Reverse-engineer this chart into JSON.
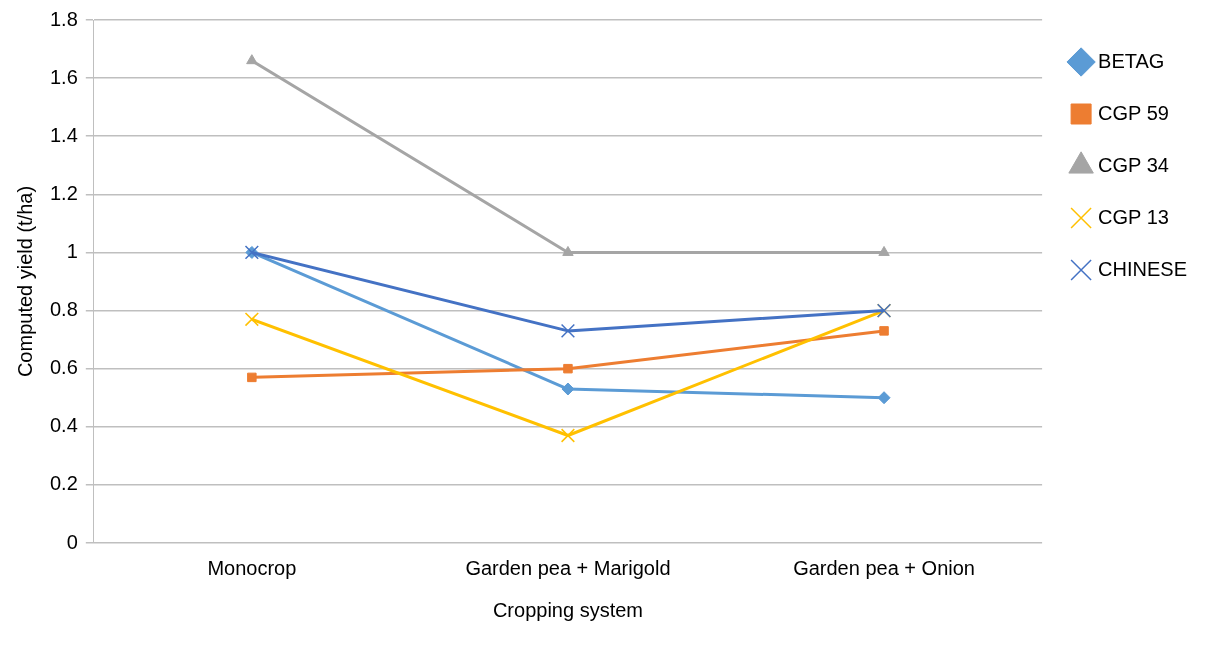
{
  "chart_data": {
    "type": "line",
    "xlabel": "Cropping system",
    "ylabel": "Computed yield (t/ha)",
    "categories": [
      "Monocrop",
      "Garden pea + Marigold",
      "Garden pea + Onion"
    ],
    "series": [
      {
        "name": "BETAG",
        "color": "#5b9bd5",
        "marker": "diamond",
        "values": [
          1,
          0.53,
          0.5
        ]
      },
      {
        "name": "CGP 59",
        "color": "#ed7d31",
        "marker": "square",
        "values": [
          0.57,
          0.6,
          0.73
        ]
      },
      {
        "name": "CGP 34",
        "color": "#a5a5a5",
        "marker": "triangle",
        "values": [
          1.66,
          1,
          1
        ]
      },
      {
        "name": "CGP 13",
        "color": "#ffc000",
        "marker": "cross",
        "values": [
          0.77,
          0.37,
          0.8
        ]
      },
      {
        "name": "CHINESE",
        "color": "#4472c4",
        "marker": "cross",
        "values": [
          1,
          0.73,
          0.8
        ]
      }
    ],
    "ylim": [
      0,
      1.8
    ],
    "yticks": [
      0,
      0.2,
      0.4,
      0.6,
      0.8,
      1,
      1.2,
      1.4,
      1.6,
      1.8
    ],
    "grid": "y",
    "legend": "right",
    "line_style": "solid"
  }
}
